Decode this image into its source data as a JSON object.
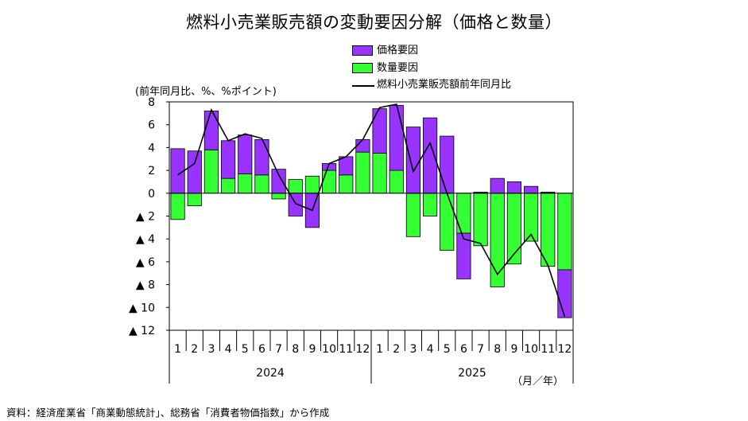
{
  "title": "燃料小売業販売額の変動要因分解（価格と数量）",
  "unit_label": "(前年同月比、%、%ポイント)",
  "source": "資料：経済産業省「商業動態統計」、総務省「消費者物価指数」から作成",
  "month_year_label": "（月／年）",
  "colors": {
    "price": "#9933FF",
    "quantity": "#33FF33",
    "line": "#000000"
  },
  "legend": [
    {
      "key": "price",
      "label": "価格要因"
    },
    {
      "key": "quantity",
      "label": "数量要因"
    },
    {
      "key": "line",
      "label": "燃料小売業販売額前年同月比"
    }
  ],
  "chart_data": {
    "type": "bar",
    "title": "燃料小売業販売額の変動要因分解（価格と数量）",
    "ylabel": "(前年同月比、%、%ポイント)",
    "xlabel": "（月／年）",
    "ylim": [
      -12,
      8
    ],
    "y_ticks": [
      8,
      6,
      4,
      2,
      0,
      -2,
      -4,
      -6,
      -8,
      -10,
      -12
    ],
    "y_tick_labels": [
      "8",
      "6",
      "4",
      "2",
      "0",
      "▲ 2",
      "▲ 4",
      "▲ 6",
      "▲ 8",
      "▲ 10",
      "▲ 12"
    ],
    "categories": [
      "1",
      "2",
      "3",
      "4",
      "5",
      "6",
      "7",
      "8",
      "9",
      "10",
      "11",
      "12",
      "1",
      "2",
      "3",
      "4",
      "5",
      "6",
      "7",
      "8",
      "9",
      "10",
      "11",
      "12"
    ],
    "year_groups": [
      {
        "label": "2024",
        "start": 0,
        "count": 12
      },
      {
        "label": "2025",
        "start": 12,
        "count": 12
      }
    ],
    "stacked": true,
    "series": [
      {
        "name": "価格要因",
        "kind": "bar",
        "color": "#9933FF",
        "values": [
          3.9,
          3.7,
          3.4,
          3.3,
          3.4,
          3.1,
          2.1,
          -2.0,
          -3.0,
          0.6,
          1.6,
          1.1,
          3.9,
          5.7,
          5.8,
          6.6,
          5.0,
          -4.0,
          0.1,
          1.3,
          1.0,
          0.6,
          0.1,
          -4.2
        ]
      },
      {
        "name": "数量要因",
        "kind": "bar",
        "color": "#33FF33",
        "values": [
          -2.3,
          -1.1,
          3.8,
          1.3,
          1.7,
          1.6,
          -0.5,
          1.2,
          1.5,
          2.0,
          1.6,
          3.6,
          3.5,
          2.0,
          -3.8,
          -2.0,
          -5.0,
          -3.5,
          -4.6,
          -8.2,
          -6.2,
          -4.2,
          -6.4,
          -6.7
        ]
      },
      {
        "name": "燃料小売業販売額前年同月比",
        "kind": "line",
        "color": "#000000",
        "values": [
          1.6,
          2.6,
          7.3,
          4.6,
          5.2,
          4.8,
          1.6,
          -0.9,
          -1.5,
          2.6,
          3.2,
          4.7,
          7.5,
          7.8,
          1.9,
          4.4,
          0.0,
          -4.0,
          -4.4,
          -7.1,
          -5.3,
          -3.6,
          -6.3,
          -10.8
        ]
      }
    ]
  }
}
